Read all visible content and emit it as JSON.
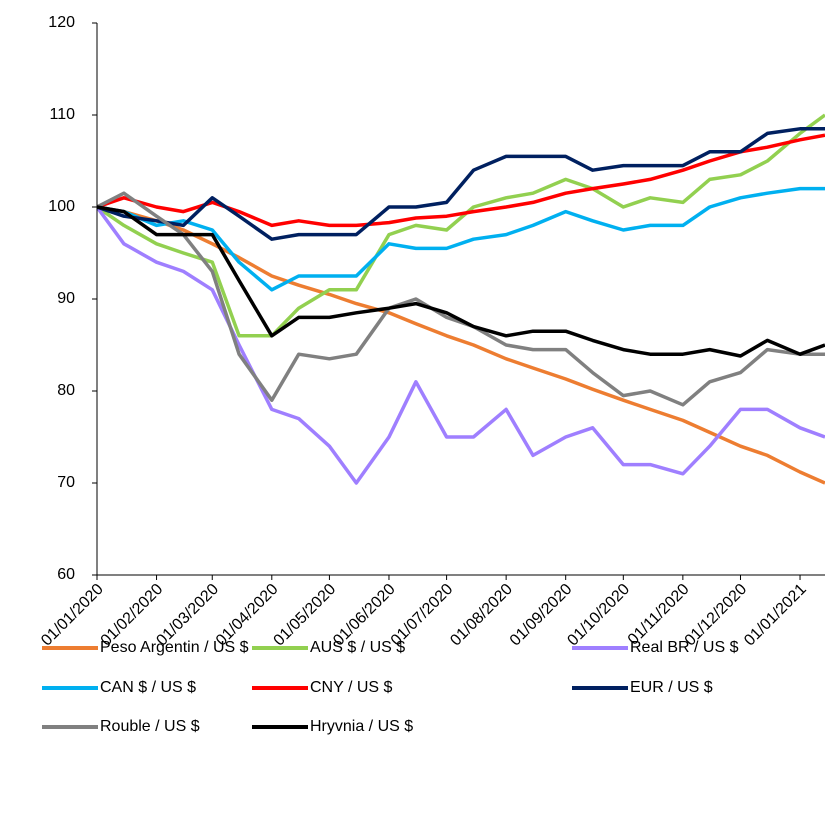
{
  "chart_data": {
    "type": "line",
    "x": [
      "01/01/2020",
      "15/01/2020",
      "01/02/2020",
      "15/02/2020",
      "01/03/2020",
      "15/03/2020",
      "01/04/2020",
      "15/04/2020",
      "01/05/2020",
      "15/05/2020",
      "01/06/2020",
      "15/06/2020",
      "01/07/2020",
      "15/07/2020",
      "01/08/2020",
      "15/08/2020",
      "01/09/2020",
      "15/09/2020",
      "01/10/2020",
      "15/10/2020",
      "01/11/2020",
      "15/11/2020",
      "01/12/2020",
      "15/12/2020",
      "01/01/2021",
      "14/01/2021"
    ],
    "series": [
      {
        "name": "Peso Argentin / US $",
        "color": "#ED7D31",
        "values": [
          100,
          99.5,
          98.5,
          97.5,
          96,
          94.5,
          92.5,
          91.5,
          90.5,
          89.5,
          88.5,
          87.3,
          86,
          85,
          83.5,
          82.5,
          81.3,
          80.2,
          79,
          78,
          76.8,
          75.5,
          74,
          73,
          71.2,
          70
        ]
      },
      {
        "name": "AUS $ / US $",
        "color": "#92D050",
        "values": [
          100,
          98,
          96,
          95,
          94,
          86,
          86,
          89,
          91,
          91,
          97,
          98,
          97.5,
          100,
          101,
          101.5,
          103,
          102,
          100,
          101,
          100.5,
          103,
          103.5,
          105,
          108,
          110
        ]
      },
      {
        "name": "Real BR / US $",
        "color": "#9F7FFF",
        "values": [
          100,
          96,
          94,
          93,
          91,
          85,
          78,
          77,
          74,
          70,
          75,
          81,
          75,
          75,
          78,
          73,
          75,
          76,
          72,
          72,
          71,
          74,
          78,
          78,
          76,
          75
        ]
      },
      {
        "name": "CAN $ / US $",
        "color": "#00B0F0",
        "values": [
          100,
          99.5,
          98,
          98.5,
          97.5,
          94,
          91,
          92.5,
          92.5,
          92.5,
          96,
          95.5,
          95.5,
          96.5,
          97,
          98,
          99.5,
          98.5,
          97.5,
          98,
          98,
          100,
          101,
          101.5,
          102,
          102
        ]
      },
      {
        "name": "CNY / US $",
        "color": "#FF0000",
        "values": [
          100,
          101,
          100,
          99.5,
          100.5,
          99.5,
          98,
          98.5,
          98,
          98,
          98.3,
          98.8,
          99,
          99.5,
          100,
          100.5,
          101.5,
          102,
          102.5,
          103,
          104,
          105,
          106,
          106.5,
          107.3,
          107.8
        ]
      },
      {
        "name": "EUR / US $",
        "color": "#002060",
        "values": [
          100,
          99,
          98.5,
          98,
          101,
          99,
          96.5,
          97,
          97,
          97,
          100,
          100,
          100.5,
          104,
          105.5,
          105.5,
          105.5,
          104,
          104.5,
          104.5,
          104.5,
          106,
          106,
          108,
          108.5,
          108.5
        ]
      },
      {
        "name": "Rouble / US $",
        "color": "#808080",
        "values": [
          100,
          101.5,
          99,
          97,
          93,
          84,
          79,
          84,
          83.5,
          84,
          89,
          90,
          88,
          87,
          85,
          84.5,
          84.5,
          82,
          79.5,
          80,
          78.5,
          81,
          82,
          84.5,
          84,
          84
        ]
      },
      {
        "name": "Hryvnia / US $",
        "color": "#000000",
        "values": [
          100,
          99.5,
          97,
          97,
          97,
          92,
          86,
          88,
          88,
          88.5,
          89,
          89.5,
          88.5,
          87,
          86,
          86.5,
          86.5,
          85.5,
          84.5,
          84,
          84,
          84.5,
          83.8,
          85.5,
          84,
          85
        ]
      }
    ],
    "xlim": [
      "01/01/2020",
      "14/01/2021"
    ],
    "xticks": [
      "01/01/2020",
      "01/02/2020",
      "01/03/2020",
      "01/04/2020",
      "01/05/2020",
      "01/06/2020",
      "01/07/2020",
      "01/08/2020",
      "01/09/2020",
      "01/10/2020",
      "01/11/2020",
      "01/12/2020",
      "01/01/2021"
    ],
    "ylim": [
      60,
      120
    ],
    "yticks": [
      60,
      70,
      80,
      90,
      100,
      110,
      120
    ],
    "legend": "bottom"
  }
}
